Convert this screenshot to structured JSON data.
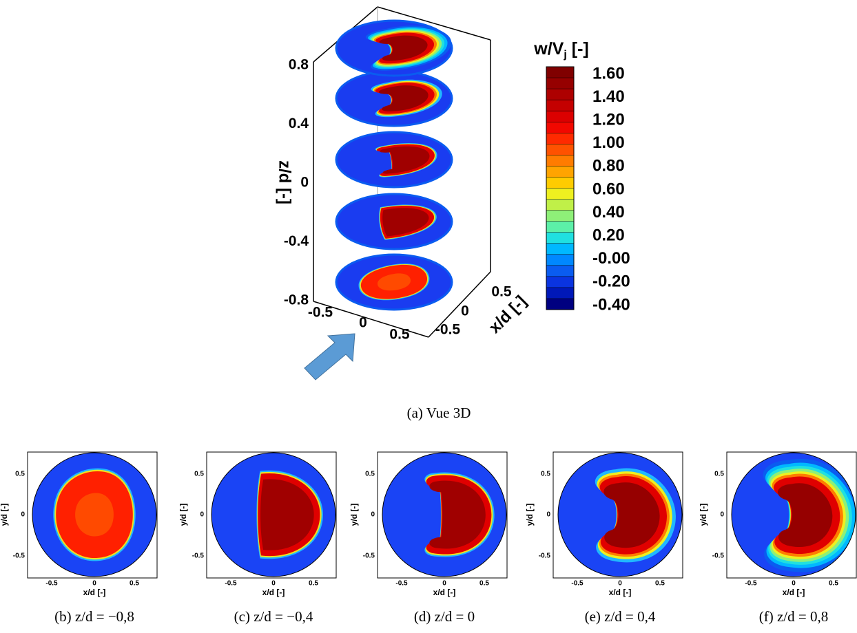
{
  "main": {
    "z_label": "z/d [-]",
    "z_ticks": [
      "0.8",
      "0.4",
      "0",
      "-0.4",
      "-0.8"
    ],
    "front_ticks": [
      "-0.5",
      "0",
      "0.5"
    ],
    "x_label": "x/d [-]",
    "x_ticks": [
      "0.5",
      "0",
      "-0.5"
    ],
    "caption": "(a) Vue 3D"
  },
  "colorbar": {
    "title": "w/V",
    "title_sub": "j",
    "title_unit": " [-]",
    "labels": [
      "1.60",
      "1.40",
      "1.20",
      "1.00",
      "0.80",
      "0.60",
      "0.40",
      "0.20",
      "-0.00",
      "-0.20",
      "-0.40"
    ],
    "colors": [
      "#800000",
      "#960000",
      "#ad0000",
      "#c40000",
      "#dc0000",
      "#f20800",
      "#ff2a00",
      "#ff5200",
      "#ff7c00",
      "#ffa400",
      "#ffcc00",
      "#eef020",
      "#c0f048",
      "#8ef078",
      "#5cf0a8",
      "#20e0e0",
      "#00b8ff",
      "#0088ff",
      "#0a5cf0",
      "#0a34e0",
      "#0018b8",
      "#000080"
    ]
  },
  "panel_axes": {
    "x_label": "x/d [-]",
    "y_label": "y/d [-]",
    "x_ticks": [
      "-0.5",
      "0",
      "0.5"
    ],
    "y_ticks": [
      "0.5",
      "0",
      "-0.5"
    ]
  },
  "panels": [
    {
      "caption": "(b) z/d = −0,8"
    },
    {
      "caption": "(c) z/d = −0,4"
    },
    {
      "caption": "(d) z/d = 0"
    },
    {
      "caption": "(e) z/d = 0,4"
    },
    {
      "caption": "(f) z/d = 0,8"
    }
  ]
}
